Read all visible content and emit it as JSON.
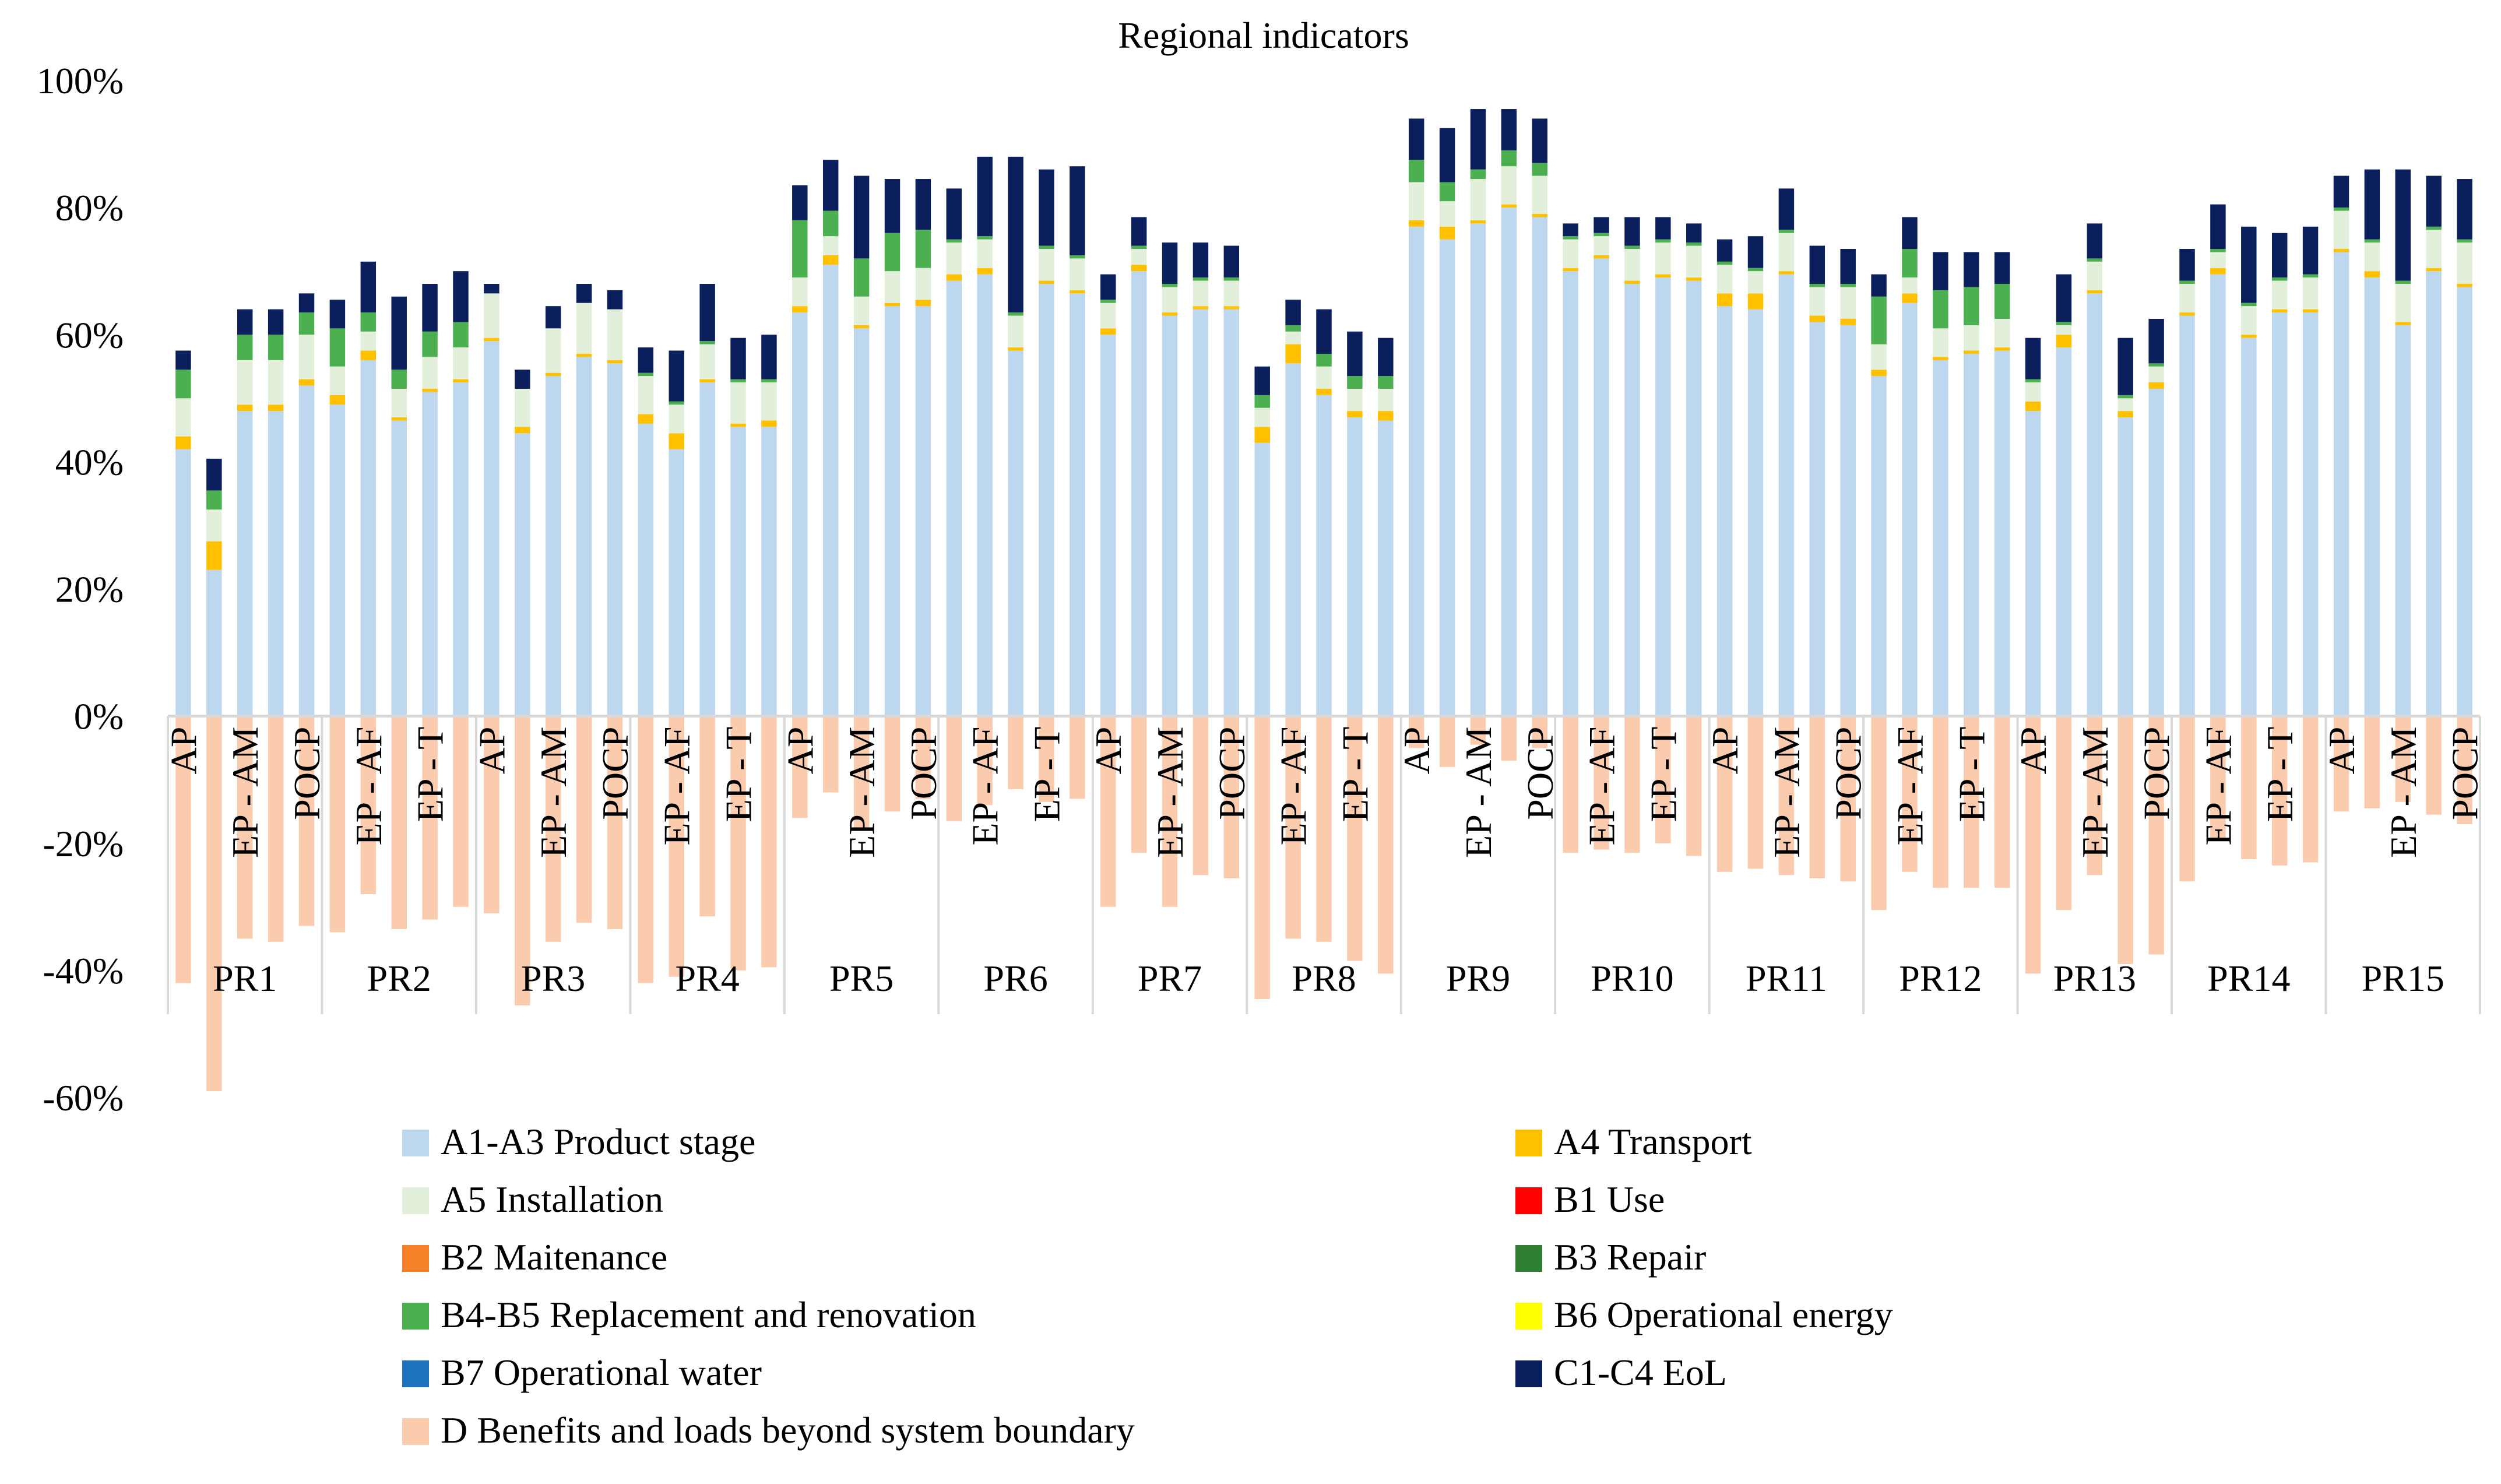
{
  "chart_data": {
    "type": "bar",
    "stacked": true,
    "title": "Regional indicators",
    "ylim": [
      -0.6,
      1.0
    ],
    "yticks": [
      -0.6,
      -0.4,
      -0.2,
      0,
      0.2,
      0.4,
      0.6,
      0.8,
      1.0
    ],
    "ytick_labels": [
      "-60%",
      "-40%",
      "-20%",
      "0%",
      "20%",
      "40%",
      "60%",
      "80%",
      "100%"
    ],
    "grid": false,
    "legend_position": "bottom",
    "indicators": [
      "AP",
      "EP - AF",
      "EP - AM",
      "EP - T",
      "POCP"
    ],
    "groups": [
      "PR1",
      "PR2",
      "PR3",
      "PR4",
      "PR5",
      "PR6",
      "PR7",
      "PR8",
      "PR9",
      "PR10",
      "PR11",
      "PR12",
      "PR13",
      "PR14",
      "PR15"
    ],
    "tick_labels": [
      [
        "AP",
        "EP - AM",
        "POCP"
      ],
      [
        "EP - AF",
        "EP - T"
      ],
      [
        "AP",
        "EP - AM",
        "POCP"
      ],
      [
        "EP - AF",
        "EP - T"
      ],
      [
        "AP",
        "EP - AM",
        "POCP"
      ],
      [
        "EP - AF",
        "EP - T"
      ],
      [
        "AP",
        "EP - AM",
        "POCP"
      ],
      [
        "EP - AF",
        "EP - T"
      ],
      [
        "AP",
        "EP - AM",
        "POCP"
      ],
      [
        "EP - AF",
        "EP - T"
      ],
      [
        "AP",
        "EP - AM",
        "POCP"
      ],
      [
        "EP - AF",
        "EP - T"
      ],
      [
        "AP",
        "EP - AM",
        "POCP"
      ],
      [
        "EP - AF",
        "EP - T"
      ],
      [
        "AP",
        "EP - AM",
        "POCP"
      ]
    ],
    "series": [
      {
        "name": "A1-A3 Product stage",
        "color": "#BDD7EE"
      },
      {
        "name": "A4 Transport",
        "color": "#FFC000"
      },
      {
        "name": "A5 Installation",
        "color": "#E2EFDA"
      },
      {
        "name": "B1 Use",
        "color": "#FF0000"
      },
      {
        "name": "B2 Maitenance",
        "color": "#F58025"
      },
      {
        "name": "B3 Repair",
        "color": "#2E7D32"
      },
      {
        "name": "B4-B5 Replacement and renovation",
        "color": "#4CAF50"
      },
      {
        "name": "B6 Operational energy",
        "color": "#FFFF00"
      },
      {
        "name": "B7 Operational water",
        "color": "#1E73BE"
      },
      {
        "name": "C1-C4 EoL",
        "color": "#0A1F5C"
      },
      {
        "name": "D Benefits and loads beyond system boundary",
        "color": "#FBCBAE"
      }
    ],
    "stack_order": [
      "A1-A3 Product stage",
      "A4 Transport",
      "A5 Installation",
      "B4-B5 Replacement and renovation",
      "C1-C4 EoL"
    ],
    "values": {
      "PR1": {
        "A1-A3": [
          0.42,
          0.23,
          0.48,
          0.48,
          0.52
        ],
        "A4": [
          0.02,
          0.045,
          0.01,
          0.01,
          0.01
        ],
        "A5": [
          0.06,
          0.05,
          0.07,
          0.07,
          0.07
        ],
        "B4-B5": [
          0.045,
          0.03,
          0.04,
          0.04,
          0.035
        ],
        "C1-C4": [
          0.03,
          0.05,
          0.04,
          0.04,
          0.03
        ],
        "D": [
          -0.42,
          -0.59,
          -0.35,
          -0.355,
          -0.33
        ]
      },
      "PR2": {
        "A1-A3": [
          0.49,
          0.56,
          0.465,
          0.51,
          0.525
        ],
        "A4": [
          0.015,
          0.015,
          0.005,
          0.005,
          0.005
        ],
        "A5": [
          0.045,
          0.03,
          0.045,
          0.05,
          0.05
        ],
        "B4-B5": [
          0.06,
          0.03,
          0.03,
          0.04,
          0.04
        ],
        "C1-C4": [
          0.045,
          0.08,
          0.115,
          0.075,
          0.08
        ],
        "D": [
          -0.34,
          -0.28,
          -0.335,
          -0.32,
          -0.3
        ]
      },
      "PR3": {
        "A1-A3": [
          0.59,
          0.445,
          0.535,
          0.565,
          0.555
        ],
        "A4": [
          0.005,
          0.01,
          0.005,
          0.005,
          0.005
        ],
        "A5": [
          0.07,
          0.06,
          0.07,
          0.08,
          0.08
        ],
        "B4-B5": [
          0.0,
          0.0,
          0.0,
          0.0,
          0.0
        ],
        "C1-C4": [
          0.015,
          0.03,
          0.035,
          0.03,
          0.03
        ],
        "D": [
          -0.31,
          -0.455,
          -0.355,
          -0.325,
          -0.335
        ]
      },
      "PR4": {
        "A1-A3": [
          0.46,
          0.42,
          0.525,
          0.455,
          0.455
        ],
        "A4": [
          0.015,
          0.025,
          0.005,
          0.005,
          0.01
        ],
        "A5": [
          0.06,
          0.045,
          0.055,
          0.065,
          0.06
        ],
        "B4-B5": [
          0.005,
          0.005,
          0.005,
          0.005,
          0.005
        ],
        "C1-C4": [
          0.04,
          0.08,
          0.09,
          0.065,
          0.07
        ],
        "D": [
          -0.42,
          -0.41,
          -0.315,
          -0.4,
          -0.395
        ]
      },
      "PR5": {
        "A1-A3": [
          0.635,
          0.71,
          0.61,
          0.645,
          0.645
        ],
        "A4": [
          0.01,
          0.015,
          0.005,
          0.005,
          0.01
        ],
        "A5": [
          0.045,
          0.03,
          0.045,
          0.05,
          0.05
        ],
        "B4-B5": [
          0.09,
          0.04,
          0.06,
          0.06,
          0.06
        ],
        "C1-C4": [
          0.055,
          0.08,
          0.13,
          0.085,
          0.08
        ],
        "D": [
          -0.16,
          -0.12,
          -0.18,
          -0.15,
          -0.13
        ]
      },
      "PR6": {
        "A1-A3": [
          0.685,
          0.695,
          0.575,
          0.68,
          0.665
        ],
        "A4": [
          0.01,
          0.01,
          0.005,
          0.005,
          0.005
        ],
        "A5": [
          0.05,
          0.045,
          0.05,
          0.05,
          0.05
        ],
        "B4-B5": [
          0.005,
          0.005,
          0.005,
          0.005,
          0.005
        ],
        "C1-C4": [
          0.08,
          0.125,
          0.245,
          0.12,
          0.14
        ],
        "D": [
          -0.165,
          -0.14,
          -0.115,
          -0.135,
          -0.13
        ]
      },
      "PR7": {
        "A1-A3": [
          0.6,
          0.7,
          0.63,
          0.64,
          0.64
        ],
        "A4": [
          0.01,
          0.01,
          0.005,
          0.005,
          0.005
        ],
        "A5": [
          0.04,
          0.025,
          0.04,
          0.04,
          0.04
        ],
        "B4-B5": [
          0.005,
          0.005,
          0.005,
          0.005,
          0.005
        ],
        "C1-C4": [
          0.04,
          0.045,
          0.065,
          0.055,
          0.05
        ],
        "D": [
          -0.3,
          -0.215,
          -0.3,
          -0.25,
          -0.255
        ]
      },
      "PR8": {
        "A1-A3": [
          0.43,
          0.555,
          0.505,
          0.47,
          0.465
        ],
        "A4": [
          0.025,
          0.03,
          0.01,
          0.01,
          0.015
        ],
        "A5": [
          0.03,
          0.02,
          0.035,
          0.035,
          0.035
        ],
        "B4-B5": [
          0.02,
          0.01,
          0.02,
          0.02,
          0.02
        ],
        "C1-C4": [
          0.045,
          0.04,
          0.07,
          0.07,
          0.06
        ],
        "D": [
          -0.445,
          -0.35,
          -0.355,
          -0.385,
          -0.405
        ]
      },
      "PR9": {
        "A1-A3": [
          0.77,
          0.75,
          0.775,
          0.8,
          0.785
        ],
        "A4": [
          0.01,
          0.02,
          0.005,
          0.005,
          0.005
        ],
        "A5": [
          0.06,
          0.04,
          0.065,
          0.06,
          0.06
        ],
        "B4-B5": [
          0.035,
          0.03,
          0.015,
          0.025,
          0.02
        ],
        "C1-C4": [
          0.065,
          0.085,
          0.095,
          0.065,
          0.07
        ],
        "D": [
          -0.05,
          -0.08,
          -0.045,
          -0.07,
          -0.05
        ]
      },
      "PR10": {
        "A1-A3": [
          0.7,
          0.72,
          0.68,
          0.69,
          0.685
        ],
        "A4": [
          0.005,
          0.005,
          0.005,
          0.005,
          0.005
        ],
        "A5": [
          0.045,
          0.03,
          0.05,
          0.05,
          0.05
        ],
        "B4-B5": [
          0.005,
          0.005,
          0.005,
          0.005,
          0.005
        ],
        "C1-C4": [
          0.02,
          0.025,
          0.045,
          0.035,
          0.03
        ],
        "D": [
          -0.215,
          -0.21,
          -0.215,
          -0.2,
          -0.22
        ]
      },
      "PR11": {
        "A1-A3": [
          0.645,
          0.64,
          0.695,
          0.62,
          0.615
        ],
        "A4": [
          0.02,
          0.025,
          0.005,
          0.01,
          0.01
        ],
        "A5": [
          0.045,
          0.035,
          0.06,
          0.045,
          0.05
        ],
        "B4-B5": [
          0.005,
          0.005,
          0.005,
          0.005,
          0.005
        ],
        "C1-C4": [
          0.035,
          0.05,
          0.065,
          0.06,
          0.055
        ],
        "D": [
          -0.245,
          -0.24,
          -0.25,
          -0.255,
          -0.26
        ]
      },
      "PR12": {
        "A1-A3": [
          0.535,
          0.65,
          0.56,
          0.57,
          0.575
        ],
        "A4": [
          0.01,
          0.015,
          0.005,
          0.005,
          0.005
        ],
        "A5": [
          0.04,
          0.025,
          0.045,
          0.04,
          0.045
        ],
        "B4-B5": [
          0.075,
          0.045,
          0.06,
          0.06,
          0.055
        ],
        "C1-C4": [
          0.035,
          0.05,
          0.06,
          0.055,
          0.05
        ],
        "D": [
          -0.305,
          -0.245,
          -0.27,
          -0.27,
          -0.27
        ]
      },
      "PR13": {
        "A1-A3": [
          0.48,
          0.58,
          0.665,
          0.47,
          0.515
        ],
        "A4": [
          0.015,
          0.02,
          0.005,
          0.01,
          0.01
        ],
        "A5": [
          0.03,
          0.015,
          0.045,
          0.02,
          0.025
        ],
        "B4-B5": [
          0.005,
          0.005,
          0.005,
          0.005,
          0.005
        ],
        "C1-C4": [
          0.065,
          0.075,
          0.055,
          0.09,
          0.07
        ],
        "D": [
          -0.405,
          -0.305,
          -0.25,
          -0.39,
          -0.375
        ]
      },
      "PR14": {
        "A1-A3": [
          0.63,
          0.695,
          0.595,
          0.635,
          0.635
        ],
        "A4": [
          0.005,
          0.01,
          0.005,
          0.005,
          0.005
        ],
        "A5": [
          0.045,
          0.025,
          0.045,
          0.045,
          0.05
        ],
        "B4-B5": [
          0.005,
          0.005,
          0.005,
          0.005,
          0.005
        ],
        "C1-C4": [
          0.05,
          0.07,
          0.12,
          0.07,
          0.075
        ],
        "D": [
          -0.26,
          -0.195,
          -0.225,
          -0.235,
          -0.23
        ]
      },
      "PR15": {
        "A1-A3": [
          0.73,
          0.69,
          0.615,
          0.7,
          0.675
        ],
        "A4": [
          0.005,
          0.01,
          0.005,
          0.005,
          0.005
        ],
        "A5": [
          0.06,
          0.045,
          0.06,
          0.06,
          0.065
        ],
        "B4-B5": [
          0.005,
          0.005,
          0.005,
          0.005,
          0.005
        ],
        "C1-C4": [
          0.05,
          0.11,
          0.175,
          0.08,
          0.095
        ],
        "D": [
          -0.15,
          -0.145,
          -0.135,
          -0.155,
          -0.17
        ]
      }
    }
  }
}
